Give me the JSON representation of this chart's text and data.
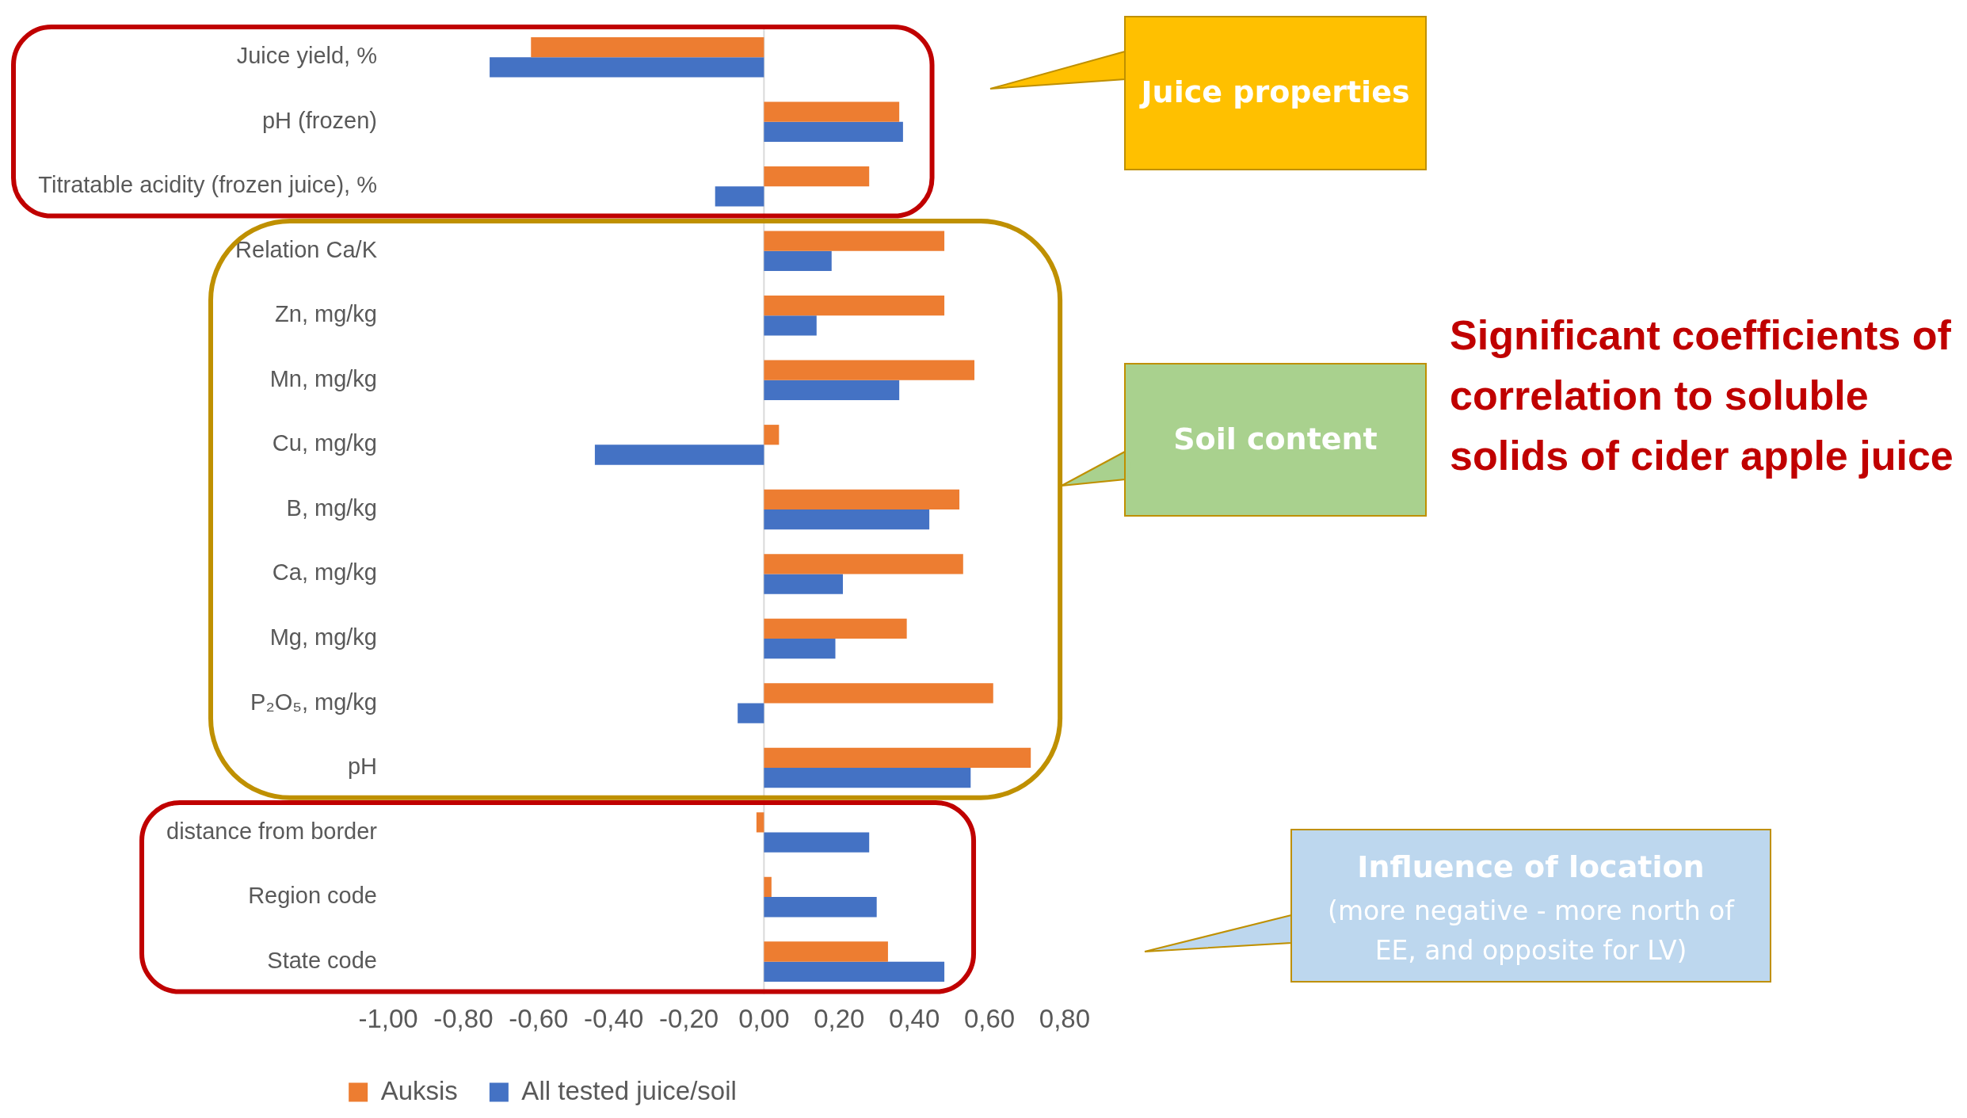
{
  "chart_data": {
    "type": "bar",
    "orientation": "horizontal",
    "title": "Significant coefficients of correlation to soluble solids of cider apple juice",
    "categories": [
      "Juice yield, %",
      "pH (frozen)",
      "Titratable acidity (frozen juice), %",
      "Relation Ca/K",
      "Zn, mg/kg",
      "Mn, mg/kg",
      "Cu, mg/kg",
      "B, mg/kg",
      "Ca, mg/kg",
      "Mg, mg/kg",
      "P₂O₅, mg/kg",
      "pH",
      "distance from border",
      "Region code",
      "State code"
    ],
    "series": [
      {
        "name": "Auksis",
        "color": "#ed7d31",
        "values": [
          -0.62,
          0.36,
          0.28,
          0.48,
          0.48,
          0.56,
          0.04,
          0.52,
          0.53,
          0.38,
          0.61,
          0.71,
          -0.02,
          0.02,
          0.33
        ]
      },
      {
        "name": "All tested juice/soil",
        "color": "#4472c4",
        "values": [
          -0.73,
          0.37,
          -0.13,
          0.18,
          0.14,
          0.36,
          -0.45,
          0.44,
          0.21,
          0.19,
          -0.07,
          0.55,
          0.28,
          0.3,
          0.48
        ]
      }
    ],
    "xlim": [
      -1,
      0.8
    ],
    "xticks": [
      {
        "value": -1,
        "label": "-1,00"
      },
      {
        "value": -0.8,
        "label": "-0,80"
      },
      {
        "value": -0.6,
        "label": "-0,60"
      },
      {
        "value": -0.4,
        "label": "-0,40"
      },
      {
        "value": -0.2,
        "label": "-0,20"
      },
      {
        "value": 0,
        "label": "0,00"
      },
      {
        "value": 0.2,
        "label": "0,20"
      },
      {
        "value": 0.4,
        "label": "0,40"
      },
      {
        "value": 0.6,
        "label": "0,60"
      },
      {
        "value": 0.8,
        "label": "0,80"
      }
    ],
    "grid": false,
    "legend": "bottom",
    "ref_lines": [
      {
        "axis": "x",
        "value": 0,
        "color": "#d9d9d9"
      }
    ],
    "annotations": [
      "Juice properties",
      "Soil content",
      "Influence of location",
      "(more negative - more north of EE, and opposite for LV)"
    ]
  }
}
